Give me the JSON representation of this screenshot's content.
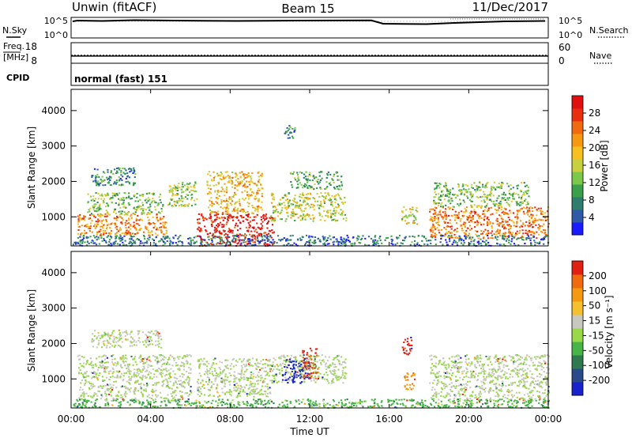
{
  "header": {
    "radar": "Unwin (fitACF)",
    "beam": "Beam 15",
    "date": "11/Dec/2017"
  },
  "noise_panel": {
    "left_label": "N.Sky",
    "right_label": "N.Search",
    "left_ticks": [
      "10^5",
      "10^0"
    ],
    "right_ticks": [
      "10^5",
      "10^0"
    ]
  },
  "freq_panel": {
    "left_label_1": "Freq.",
    "left_label_2": "[MHz]",
    "right_label": "Nave",
    "left_ticks": [
      "18",
      "8"
    ],
    "right_ticks": [
      "60",
      "0"
    ],
    "freq_mhz": 11.5,
    "nave": 23
  },
  "cpid_panel": {
    "label": "CPID",
    "value": "normal (fast) 151"
  },
  "chart_data": [
    {
      "type": "heatmap",
      "name": "power",
      "ylabel": "Slant Range [km]",
      "ylim": [
        180,
        4600
      ],
      "yticks": [
        "1000",
        "2000",
        "3000",
        "4000"
      ],
      "colorbar": {
        "label": "Power [dB]",
        "ticks": [
          "4",
          "8",
          "12",
          "16",
          "20",
          "24",
          "28"
        ],
        "colors": [
          "#1a1aff",
          "#2e5aa8",
          "#2f7d6e",
          "#3aa04a",
          "#7cc84a",
          "#c8d040",
          "#f5c020",
          "#f59a10",
          "#f06a10",
          "#e83010",
          "#e01010"
        ]
      },
      "regions": [
        {
          "x0": 0.3,
          "x1": 4.8,
          "y0": 500,
          "y1": 1100,
          "level": 0.72
        },
        {
          "x0": 0.8,
          "x1": 4.6,
          "y0": 1100,
          "y1": 1700,
          "level": 0.4
        },
        {
          "x0": 1.0,
          "x1": 3.2,
          "y0": 1900,
          "y1": 2400,
          "level": 0.25
        },
        {
          "x0": 4.8,
          "x1": 6.3,
          "y0": 1300,
          "y1": 2000,
          "level": 0.45
        },
        {
          "x0": 6.3,
          "x1": 10.2,
          "y0": 200,
          "y1": 1100,
          "level": 0.95
        },
        {
          "x0": 6.8,
          "x1": 9.6,
          "y0": 1100,
          "y1": 2300,
          "level": 0.62
        },
        {
          "x0": 10.0,
          "x1": 13.8,
          "y0": 900,
          "y1": 1700,
          "level": 0.5
        },
        {
          "x0": 11.0,
          "x1": 13.6,
          "y0": 1800,
          "y1": 2300,
          "level": 0.35
        },
        {
          "x0": 10.7,
          "x1": 11.3,
          "y0": 3200,
          "y1": 3600,
          "level": 0.25
        },
        {
          "x0": 16.6,
          "x1": 17.4,
          "y0": 800,
          "y1": 1300,
          "level": 0.5
        },
        {
          "x0": 18.0,
          "x1": 24.0,
          "y0": 400,
          "y1": 1300,
          "level": 0.75
        },
        {
          "x0": 18.2,
          "x1": 23.0,
          "y0": 1300,
          "y1": 2000,
          "level": 0.4
        },
        {
          "x0": 0.0,
          "x1": 24.0,
          "y0": 200,
          "y1": 500,
          "level": 0.2
        }
      ]
    },
    {
      "type": "heatmap",
      "name": "velocity",
      "ylabel": "Slant Range [km]",
      "xlabel": "Time UT",
      "ylim": [
        180,
        4600
      ],
      "yticks": [
        "1000",
        "2000",
        "3000",
        "4000"
      ],
      "xticks": [
        "00:00",
        "04:00",
        "08:00",
        "12:00",
        "16:00",
        "20:00",
        "00:00"
      ],
      "colorbar": {
        "label": "Velocity [m s⁻¹]",
        "ticks": [
          "200",
          "100",
          "50",
          "15",
          "-15",
          "-50",
          "-100",
          "-200"
        ],
        "colors": [
          "#1a22cc",
          "#2a4a8a",
          "#2e7a4e",
          "#46b446",
          "#9ad84a",
          "#c8c8c0",
          "#f5c030",
          "#f59a10",
          "#f06a10",
          "#e02010"
        ]
      },
      "regions": [
        {
          "x0": 0.3,
          "x1": 6.0,
          "y0": 400,
          "y1": 1700,
          "level": 0.5
        },
        {
          "x0": 1.0,
          "x1": 4.5,
          "y0": 1900,
          "y1": 2400,
          "level": 0.5
        },
        {
          "x0": 6.3,
          "x1": 10.0,
          "y0": 500,
          "y1": 1600,
          "level": 0.5
        },
        {
          "x0": 10.0,
          "x1": 13.8,
          "y0": 900,
          "y1": 1700,
          "level": 0.5
        },
        {
          "x0": 10.6,
          "x1": 12.0,
          "y0": 900,
          "y1": 1600,
          "level": 0.05
        },
        {
          "x0": 11.6,
          "x1": 12.4,
          "y0": 1000,
          "y1": 1900,
          "level": 0.92
        },
        {
          "x0": 16.6,
          "x1": 17.1,
          "y0": 1700,
          "y1": 2200,
          "level": 0.95
        },
        {
          "x0": 16.7,
          "x1": 17.3,
          "y0": 700,
          "y1": 1200,
          "level": 0.75
        },
        {
          "x0": 18.0,
          "x1": 24.0,
          "y0": 400,
          "y1": 1700,
          "level": 0.5
        },
        {
          "x0": 0.0,
          "x1": 24.0,
          "y0": 200,
          "y1": 450,
          "level": 0.35
        }
      ]
    }
  ]
}
